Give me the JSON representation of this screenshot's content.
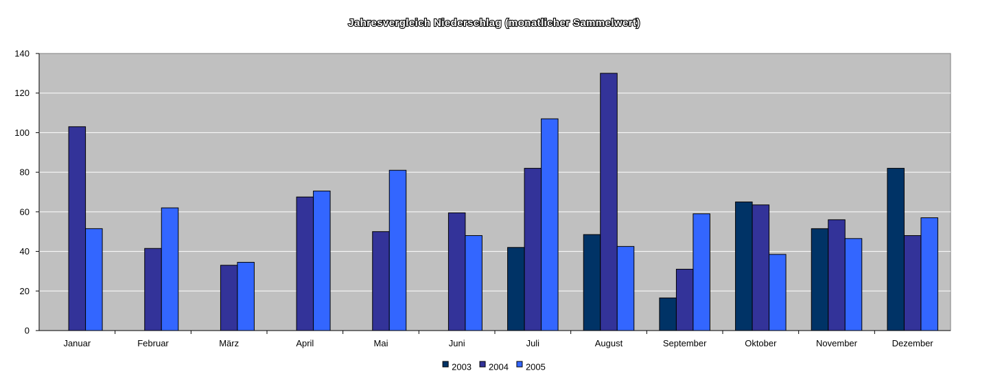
{
  "chart_data": {
    "type": "bar",
    "title": "Jahresvergleich Niederschlag (monatlicher Sammelwert)",
    "xlabel": "",
    "ylabel": "",
    "ylim": [
      0,
      140
    ],
    "yticks": [
      0,
      20,
      40,
      60,
      80,
      100,
      120,
      140
    ],
    "grid": true,
    "legend_position": "bottom",
    "categories": [
      "Januar",
      "Februar",
      "März",
      "April",
      "Mai",
      "Juni",
      "Juli",
      "August",
      "September",
      "Oktober",
      "November",
      "Dezember"
    ],
    "series": [
      {
        "name": "2003",
        "color": "#003366",
        "values": [
          null,
          null,
          null,
          null,
          null,
          null,
          42,
          48.5,
          16.5,
          65,
          51.5,
          82
        ]
      },
      {
        "name": "2004",
        "color": "#333399",
        "values": [
          103,
          41.5,
          33,
          67.5,
          50,
          59.5,
          82,
          130,
          31,
          63.5,
          56,
          48
        ]
      },
      {
        "name": "2005",
        "color": "#3366FF",
        "values": [
          51.5,
          62,
          34.5,
          70.5,
          81,
          48,
          107,
          42.5,
          59,
          38.5,
          46.5,
          57
        ]
      }
    ],
    "plot_background": "#C0C0C0",
    "gridline_color": "#FFFFFF"
  }
}
